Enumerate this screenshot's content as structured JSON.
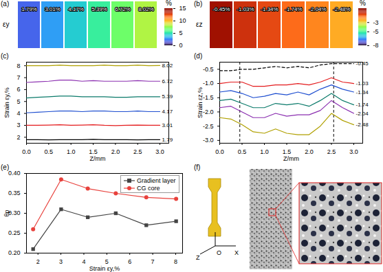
{
  "chart_data": [
    {
      "type": "heatmap",
      "panel": "(a)",
      "ylabel": "εy",
      "values": [
        1.79,
        3.01,
        4.17,
        5.39,
        6.72,
        8.02
      ],
      "value_labels": [
        "1.79%",
        "3.01%",
        "4.17%",
        "5.39%",
        "6.72%",
        "8.02%"
      ],
      "data_labels": true,
      "colorbar": {
        "label": "%",
        "range": [
          0,
          15
        ],
        "ticks": [
          0,
          5,
          10,
          15
        ]
      }
    },
    {
      "type": "heatmap",
      "panel": "(b)",
      "ylabel": "εz",
      "values": [
        -0.45,
        -1.03,
        -1.34,
        -1.74,
        -2.04,
        -2.48
      ],
      "value_labels": [
        "-0.45%",
        "-1.03%",
        "-1.34%",
        "-1.74%",
        "-2.04%",
        "-2.48%"
      ],
      "data_labels": true,
      "colorbar": {
        "label": "%",
        "range": [
          -8,
          0
        ],
        "ticks": [
          -3,
          -5,
          -8
        ]
      }
    },
    {
      "type": "line",
      "panel": "(c)",
      "xlabel": "Z/mm",
      "ylabel": "Strain εy,%",
      "x": [
        0,
        0.25,
        0.5,
        0.75,
        1,
        1.25,
        1.5,
        1.75,
        2,
        2.25,
        2.5,
        2.75,
        3
      ],
      "xlim": [
        0,
        3.2
      ],
      "xticks": [
        {
          "value": 0,
          "label": "0.0"
        },
        0.5,
        {
          "value": 1,
          "label": "1.0"
        },
        1.5,
        {
          "value": 2,
          "label": "2.0"
        },
        2.5,
        {
          "value": 3,
          "label": "3.0"
        }
      ],
      "ylim": [
        1.5,
        8.3
      ],
      "yticks": [
        2,
        3,
        4,
        5,
        6,
        7,
        8
      ],
      "legend": "right",
      "series": [
        {
          "name": "1.79",
          "color": "#000000",
          "values": [
            1.8,
            1.8,
            1.78,
            1.8,
            1.8,
            1.8,
            1.82,
            1.8,
            1.8,
            1.8,
            1.78,
            1.8,
            1.8
          ]
        },
        {
          "name": "3.01",
          "color": "#e41a1c",
          "values": [
            3.0,
            3.0,
            3.02,
            3.05,
            3.0,
            3.02,
            3.05,
            3.0,
            2.98,
            3.0,
            3.02,
            3.0,
            3.0
          ]
        },
        {
          "name": "4.17",
          "color": "#1f4fd0",
          "values": [
            4.05,
            4.1,
            4.15,
            4.2,
            4.2,
            4.15,
            4.2,
            4.2,
            4.15,
            4.15,
            4.2,
            4.15,
            4.15
          ]
        },
        {
          "name": "5.39",
          "color": "#0a7a6a",
          "values": [
            5.3,
            5.35,
            5.4,
            5.45,
            5.45,
            5.4,
            5.4,
            5.4,
            5.35,
            5.35,
            5.4,
            5.4,
            5.4
          ]
        },
        {
          "name": "6.72",
          "color": "#8b2fb0",
          "values": [
            6.6,
            6.65,
            6.7,
            6.8,
            6.8,
            6.7,
            6.75,
            6.7,
            6.7,
            6.7,
            6.75,
            6.7,
            6.7
          ]
        },
        {
          "name": "8.02",
          "color": "#b0a000",
          "values": [
            8.0,
            8.0,
            8.0,
            8.05,
            8.0,
            8.0,
            8.0,
            8.05,
            8.0,
            8.0,
            8.05,
            8.0,
            8.02
          ]
        }
      ]
    },
    {
      "type": "line",
      "panel": "(d)",
      "xlabel": "Z/mm",
      "ylabel": "Strain εz,%",
      "x": [
        0,
        0.25,
        0.5,
        0.75,
        1,
        1.25,
        1.5,
        1.75,
        2,
        2.25,
        2.5,
        2.75,
        3
      ],
      "xlim": [
        0,
        3.2
      ],
      "xticks": [
        {
          "value": 0,
          "label": "0.0"
        },
        0.5,
        {
          "value": 1,
          "label": "1.0"
        },
        1.5,
        {
          "value": 2,
          "label": "2.0"
        },
        2.5,
        {
          "value": 3,
          "label": "3.0"
        }
      ],
      "ylim": [
        -3.1,
        -0.25
      ],
      "yticks": [
        {
          "value": -3,
          "label": "-3.0"
        },
        -2.5,
        {
          "value": -2,
          "label": "-2.0"
        },
        -1.5,
        {
          "value": -1,
          "label": "-1.0"
        },
        -0.5
      ],
      "reference_lines_x": [
        0.45,
        2.55
      ],
      "legend": "right",
      "series": [
        {
          "name": "-0.45",
          "color": "#000000",
          "line_style": "dashed",
          "values": [
            -0.55,
            -0.55,
            -0.5,
            -0.5,
            -0.45,
            -0.4,
            -0.45,
            -0.4,
            -0.45,
            -0.35,
            -0.3,
            -0.3,
            -0.3
          ]
        },
        {
          "name": "-1.03",
          "color": "#e41a1c",
          "values": [
            -1.0,
            -0.95,
            -0.95,
            -1.1,
            -1.1,
            -1.05,
            -1.05,
            -1.0,
            -1.05,
            -0.95,
            -0.8,
            -0.95,
            -1.0
          ]
        },
        {
          "name": "-1.34",
          "color": "#1f4fd0",
          "values": [
            -1.3,
            -1.25,
            -1.35,
            -1.5,
            -1.45,
            -1.35,
            -1.4,
            -1.3,
            -1.4,
            -1.2,
            -1.05,
            -1.2,
            -1.3
          ]
        },
        {
          "name": "-1.74",
          "color": "#0a7a6a",
          "values": [
            -1.6,
            -1.55,
            -1.7,
            -1.85,
            -1.85,
            -1.7,
            -1.75,
            -1.7,
            -1.8,
            -1.6,
            -1.35,
            -1.6,
            -1.75
          ]
        },
        {
          "name": "-2.04",
          "color": "#8b2fb0",
          "values": [
            -1.85,
            -1.8,
            -2.0,
            -2.2,
            -2.2,
            -2.05,
            -2.15,
            -2.1,
            -2.1,
            -1.95,
            -1.6,
            -1.85,
            -2.05
          ]
        },
        {
          "name": "-2.48",
          "color": "#b0a000",
          "values": [
            -2.2,
            -2.25,
            -2.45,
            -2.7,
            -2.75,
            -2.6,
            -2.75,
            -2.8,
            -2.8,
            -2.5,
            -2.05,
            -2.3,
            -2.45
          ]
        }
      ]
    },
    {
      "type": "line",
      "panel": "(e)",
      "xlabel": "Strain εy,%",
      "ylabel": "θp",
      "x": [
        1.79,
        3.01,
        4.17,
        5.39,
        6.72,
        8.02
      ],
      "xlim": [
        1.5,
        8.3
      ],
      "xticks": [
        2,
        3,
        4,
        5,
        6,
        7,
        8
      ],
      "ylim": [
        0.2,
        0.4
      ],
      "yticks": [
        {
          "value": 0.2,
          "label": "0.20"
        },
        0.25,
        {
          "value": 0.3,
          "label": "0.30"
        },
        0.35,
        {
          "value": 0.4,
          "label": "0.40"
        }
      ],
      "legend": "upper right",
      "series": [
        {
          "name": "Gradient layer",
          "color": "#444444",
          "marker": "square",
          "values": [
            0.21,
            0.31,
            0.29,
            0.3,
            0.27,
            0.28
          ]
        },
        {
          "name": "CG core",
          "color": "#e8413c",
          "marker": "circle",
          "values": [
            0.26,
            0.385,
            0.362,
            0.35,
            0.34,
            0.336
          ]
        }
      ]
    },
    {
      "type": "image",
      "panel": "(f)",
      "labels": [
        "Z",
        "O",
        "X"
      ]
    }
  ]
}
